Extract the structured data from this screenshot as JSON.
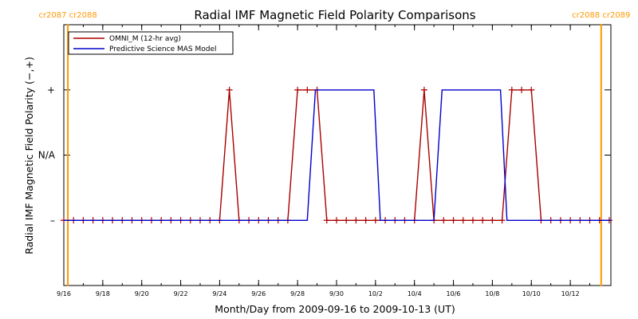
{
  "chart_data": {
    "type": "line",
    "title": "Radial IMF Magnetic Field Polarity Comparisons",
    "xlabel": "Month/Day from 2009-09-16 to 2009-10-13 (UT)",
    "ylabel": "Radial IMF Magnetic Field Polarity (−,+)",
    "x_unit": "date",
    "xlim": [
      "2009-09-16T00:00",
      "2009-10-14T02:00"
    ],
    "ylim": [
      -1,
      3
    ],
    "y_ticks": [
      0,
      1,
      2
    ],
    "y_tick_labels": [
      "–",
      "N/A",
      "+"
    ],
    "x_ticks": [
      "2009-09-16",
      "2009-09-18",
      "2009-09-20",
      "2009-09-22",
      "2009-09-24",
      "2009-09-26",
      "2009-09-28",
      "2009-09-30",
      "2009-10-02",
      "2009-10-04",
      "2009-10-06",
      "2009-10-08",
      "2009-10-10",
      "2009-10-12"
    ],
    "x_tick_labels": [
      "9/16",
      "9/18",
      "9/20",
      "9/22",
      "9/24",
      "9/26",
      "9/28",
      "9/30",
      "10/2",
      "10/4",
      "10/6",
      "10/8",
      "10/10",
      "10/12"
    ],
    "grid": false,
    "legend": "top-left",
    "carrington_markers": [
      {
        "date": "2009-09-16T05:00",
        "labels": [
          "cr2087",
          "cr2088"
        ],
        "color": "#ff9900"
      },
      {
        "date": "2009-10-13T14:00",
        "labels": [
          "cr2088",
          "cr2089"
        ],
        "color": "#ff9900"
      }
    ],
    "series": [
      {
        "name": "OMNI_M (12-hr avg)",
        "color": "#aa0000",
        "markers": "plus",
        "x": [
          "2009-09-16T00:00",
          "2009-09-16T12:00",
          "2009-09-17T00:00",
          "2009-09-17T12:00",
          "2009-09-18T00:00",
          "2009-09-18T12:00",
          "2009-09-19T00:00",
          "2009-09-19T12:00",
          "2009-09-20T00:00",
          "2009-09-20T12:00",
          "2009-09-21T00:00",
          "2009-09-21T12:00",
          "2009-09-22T00:00",
          "2009-09-22T12:00",
          "2009-09-23T00:00",
          "2009-09-23T12:00",
          "2009-09-24T00:00",
          "2009-09-24T12:00",
          "2009-09-25T00:00",
          "2009-09-25T12:00",
          "2009-09-26T00:00",
          "2009-09-26T12:00",
          "2009-09-27T00:00",
          "2009-09-27T12:00",
          "2009-09-28T00:00",
          "2009-09-28T12:00",
          "2009-09-29T00:00",
          "2009-09-29T12:00",
          "2009-09-30T00:00",
          "2009-09-30T12:00",
          "2009-10-01T00:00",
          "2009-10-01T12:00",
          "2009-10-02T00:00",
          "2009-10-02T12:00",
          "2009-10-03T00:00",
          "2009-10-03T12:00",
          "2009-10-04T00:00",
          "2009-10-04T12:00",
          "2009-10-05T00:00",
          "2009-10-05T12:00",
          "2009-10-06T00:00",
          "2009-10-06T12:00",
          "2009-10-07T00:00",
          "2009-10-07T12:00",
          "2009-10-08T00:00",
          "2009-10-08T12:00",
          "2009-10-09T00:00",
          "2009-10-09T12:00",
          "2009-10-10T00:00",
          "2009-10-10T12:00",
          "2009-10-11T00:00",
          "2009-10-11T12:00",
          "2009-10-12T00:00",
          "2009-10-12T12:00",
          "2009-10-13T00:00",
          "2009-10-13T12:00",
          "2009-10-14T00:00"
        ],
        "y": [
          0,
          0,
          0,
          0,
          0,
          0,
          0,
          0,
          0,
          0,
          0,
          0,
          0,
          0,
          0,
          0,
          0,
          2,
          0,
          0,
          0,
          0,
          0,
          0,
          2,
          2,
          2,
          0,
          0,
          0,
          0,
          0,
          0,
          0,
          0,
          0,
          0,
          2,
          0,
          0,
          0,
          0,
          0,
          0,
          0,
          0,
          2,
          2,
          2,
          0,
          0,
          0,
          0,
          0,
          0,
          0,
          0
        ]
      },
      {
        "name": "Predictive Science MAS Model",
        "color": "#0000cc",
        "markers": "none",
        "x": [
          "2009-09-16T00:00",
          "2009-09-28T12:00",
          "2009-09-28T22:00",
          "2009-10-01T22:00",
          "2009-10-02T06:00",
          "2009-10-05T00:00",
          "2009-10-05T10:00",
          "2009-10-08T10:00",
          "2009-10-08T18:00",
          "2009-10-14T02:00"
        ],
        "y": [
          0,
          0,
          2,
          2,
          0,
          0,
          2,
          2,
          0,
          0
        ]
      }
    ]
  }
}
